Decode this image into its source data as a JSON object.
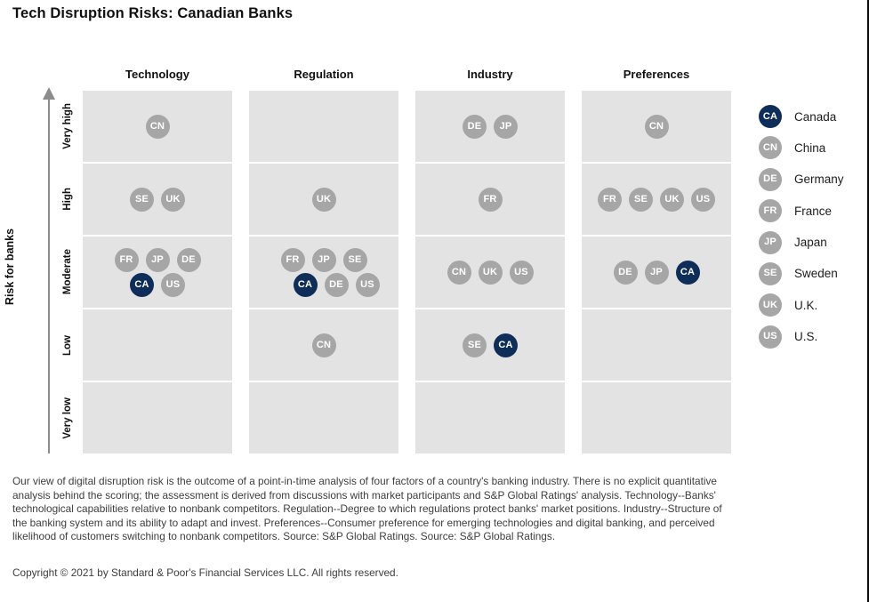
{
  "title": "Tech Disruption Risks: Canadian Banks",
  "colors": {
    "highlight": "#0e2d59",
    "default_badge": "#a6a6a6",
    "badge_text": "#ffffff",
    "band_background": "#e3e3e3",
    "axis": "#8c8c8c"
  },
  "legend": [
    {
      "code": "CA",
      "label": "Canada",
      "highlight": true
    },
    {
      "code": "CN",
      "label": "China",
      "highlight": false
    },
    {
      "code": "DE",
      "label": "Germany",
      "highlight": false
    },
    {
      "code": "FR",
      "label": "France",
      "highlight": false
    },
    {
      "code": "JP",
      "label": "Japan",
      "highlight": false
    },
    {
      "code": "SE",
      "label": "Sweden",
      "highlight": false
    },
    {
      "code": "UK",
      "label": "U.K.",
      "highlight": false
    },
    {
      "code": "US",
      "label": "U.S.",
      "highlight": false
    }
  ],
  "chart_data": {
    "type": "categorical_dot_matrix",
    "title": "Tech Disruption Risks: Canadian Banks",
    "ylabel": "Risk for banks",
    "y_categories": [
      "Very high",
      "High",
      "Moderate",
      "Low",
      "Very low"
    ],
    "x_categories": [
      "Technology",
      "Regulation",
      "Industry",
      "Preferences"
    ],
    "highlight_country": "CA",
    "legend_position": "right",
    "placements": {
      "Technology": [
        {
          "level": "Very high",
          "rows": [
            [
              "CN"
            ]
          ]
        },
        {
          "level": "High",
          "rows": [
            [
              "SE",
              "UK"
            ]
          ]
        },
        {
          "level": "Moderate",
          "rows": [
            [
              "FR",
              "JP",
              "DE"
            ],
            [
              "CA",
              "US"
            ]
          ]
        },
        {
          "level": "Low",
          "rows": []
        },
        {
          "level": "Very low",
          "rows": []
        }
      ],
      "Regulation": [
        {
          "level": "Very high",
          "rows": []
        },
        {
          "level": "High",
          "rows": [
            [
              "UK"
            ]
          ]
        },
        {
          "level": "Moderate",
          "rows": [
            [
              "FR",
              "JP",
              "SE"
            ],
            [
              "CA",
              "DE",
              "US"
            ]
          ]
        },
        {
          "level": "Low",
          "rows": [
            [
              "CN"
            ]
          ]
        },
        {
          "level": "Very low",
          "rows": []
        }
      ],
      "Industry": [
        {
          "level": "Very high",
          "rows": [
            [
              "DE",
              "JP"
            ]
          ]
        },
        {
          "level": "High",
          "rows": [
            [
              "FR"
            ]
          ]
        },
        {
          "level": "Moderate",
          "rows": [
            [
              "CN",
              "UK",
              "US"
            ]
          ]
        },
        {
          "level": "Low",
          "rows": [
            [
              "SE",
              "CA"
            ]
          ]
        },
        {
          "level": "Very low",
          "rows": []
        }
      ],
      "Preferences": [
        {
          "level": "Very high",
          "rows": [
            [
              "CN"
            ]
          ]
        },
        {
          "level": "High",
          "rows": [
            [
              "FR",
              "SE",
              "UK",
              "US"
            ]
          ]
        },
        {
          "level": "Moderate",
          "rows": [
            [
              "DE",
              "JP",
              "CA"
            ]
          ]
        },
        {
          "level": "Low",
          "rows": []
        },
        {
          "level": "Very low",
          "rows": []
        }
      ]
    }
  },
  "footnote": "Our view of digital disruption risk is the outcome of a point-in-time analysis of four factors of a country's banking industry. There is no explicit quantitative analysis behind the scoring; the assessment is derived from discussions with market participants and S&P Global Ratings' analysis. Technology--Banks' technological capabilities relative to nonbank competitors. Regulation--Degree to which regulations protect banks' market positions. Industry--Structure of the banking system and its ability to adapt and invest. Preferences--Consumer preference for emerging technologies and digital banking, and perceived likelihood of customers switching to nonbank competitors. Source: S&P Global Ratings. Source: S&P Global Ratings.",
  "copyright": "Copyright © 2021 by Standard & Poor's Financial Services LLC. All rights reserved."
}
